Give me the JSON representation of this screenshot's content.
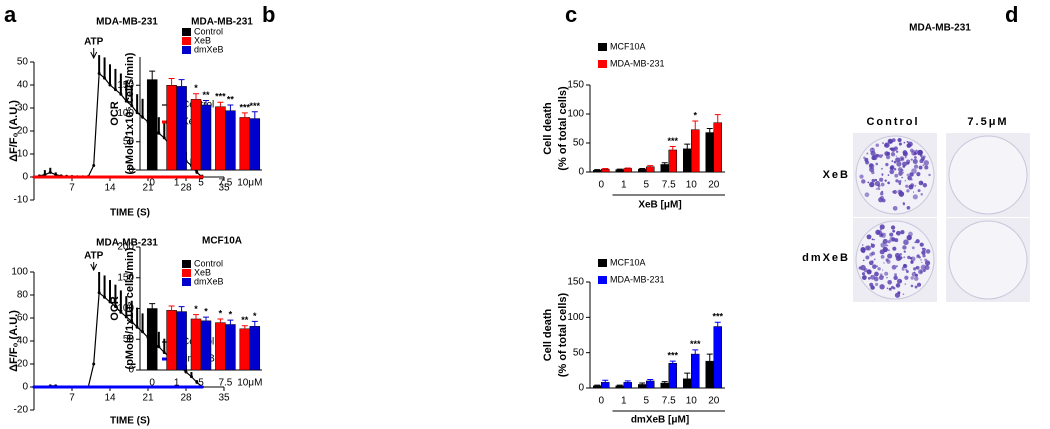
{
  "panel_labels": [
    "a",
    "b",
    "c",
    "d"
  ],
  "chart_data": [
    {
      "type": "line",
      "title": "MDA-MB-231",
      "xlabel": "TIME (S)",
      "ylabel": [
        "ΔF/F₀ (A.U.)"
      ],
      "annotation": {
        "text": "ATP",
        "x": 11
      },
      "x": [
        0,
        1,
        2,
        3,
        4,
        5,
        6,
        7,
        8,
        9,
        10,
        11,
        12,
        13,
        14,
        15,
        16,
        17,
        18,
        19,
        20,
        21,
        22,
        23,
        24,
        25,
        26,
        27,
        28,
        29,
        30,
        31
      ],
      "xlim": [
        0,
        35
      ],
      "xticks": [
        7,
        14,
        21,
        28,
        35
      ],
      "ylim": [
        -10,
        50
      ],
      "yticks": [
        -10,
        0,
        10,
        20,
        30,
        40,
        50
      ],
      "series": [
        {
          "name": "Control",
          "color": "#000000",
          "values": [
            0,
            0.5,
            1,
            2,
            1,
            0.5,
            0.3,
            0.2,
            0.1,
            0.1,
            0.2,
            5,
            45,
            43,
            40,
            38,
            36,
            33,
            31,
            28,
            26,
            24,
            21,
            19,
            17,
            14,
            12,
            9,
            7,
            5,
            2,
            0
          ],
          "errors": [
            0,
            0,
            2,
            2,
            1,
            0,
            0,
            0,
            0,
            0,
            0,
            0,
            8,
            9,
            9,
            9,
            9,
            9,
            9,
            8,
            8,
            8,
            7,
            7,
            7,
            6,
            6,
            5,
            4,
            3,
            2,
            1
          ]
        },
        {
          "name": "XeB",
          "color": "#ff0000",
          "values": [
            0,
            0,
            0,
            0,
            0,
            0,
            0,
            0,
            0,
            0,
            0,
            0,
            0,
            0,
            0,
            0,
            0,
            0,
            0,
            0,
            0,
            0,
            0,
            0,
            0,
            0,
            0,
            0,
            0,
            0,
            0,
            0
          ]
        }
      ]
    },
    {
      "type": "line",
      "title": "MDA-MB-231",
      "xlabel": "TIME (S)",
      "ylabel": [
        "ΔF/F₀ (A.U.)"
      ],
      "annotation": {
        "text": "ATP",
        "x": 11
      },
      "x": [
        0,
        1,
        2,
        3,
        4,
        5,
        6,
        7,
        8,
        9,
        10,
        11,
        12,
        13,
        14,
        15,
        16,
        17,
        18,
        19,
        20,
        21,
        22,
        23,
        24,
        25,
        26,
        27,
        28,
        29,
        30,
        31
      ],
      "xlim": [
        0,
        35
      ],
      "xticks": [
        7,
        14,
        21,
        28,
        35
      ],
      "ylim": [
        -20,
        100
      ],
      "yticks": [
        -20,
        0,
        20,
        40,
        60,
        80,
        100
      ],
      "series": [
        {
          "name": "Control",
          "color": "#000000",
          "values": [
            0,
            0,
            0,
            1,
            1,
            0,
            0,
            0,
            0,
            0,
            0,
            20,
            82,
            78,
            74,
            70,
            65,
            61,
            57,
            52,
            48,
            43,
            39,
            35,
            30,
            26,
            22,
            17,
            13,
            9,
            4,
            0
          ],
          "errors": [
            0,
            0,
            0,
            0,
            0,
            0,
            0,
            0,
            0,
            0,
            0,
            0,
            18,
            19,
            19,
            19,
            19,
            18,
            18,
            17,
            16,
            15,
            14,
            13,
            12,
            11,
            10,
            8,
            6,
            4,
            2,
            1
          ]
        },
        {
          "name": "dmXeB",
          "color": "#0000ff",
          "values": [
            0,
            0,
            0,
            0,
            0,
            0,
            0,
            0,
            0,
            0,
            0,
            0,
            0,
            0,
            0,
            0,
            0,
            0,
            0,
            0,
            0,
            0,
            0,
            0,
            0,
            0,
            0,
            0,
            0,
            0,
            0,
            0
          ]
        }
      ]
    },
    {
      "type": "bar",
      "title": "MDA-MB-231",
      "ylabel": [
        "OCR",
        "(pMole/1x10⁵ cells/min)"
      ],
      "categories": [
        "0",
        "1",
        "5",
        "7.5",
        "10μM"
      ],
      "ylim": [
        0,
        200
      ],
      "yticks": [
        0,
        50,
        100,
        150
      ],
      "series": [
        {
          "name": "Control",
          "color": "#000000",
          "values": [
            160,
            null,
            null,
            null,
            null
          ],
          "errors": [
            15,
            null,
            null,
            null,
            null
          ]
        },
        {
          "name": "XeB",
          "color": "#ff0000",
          "values": [
            null,
            150,
            125,
            112,
            93
          ],
          "errors": [
            null,
            12,
            10,
            8,
            8
          ],
          "annotations": [
            null,
            null,
            "*",
            "***",
            "***"
          ]
        },
        {
          "name": "dmXeB",
          "color": "#0000cc",
          "values": [
            null,
            148,
            115,
            105,
            91
          ],
          "errors": [
            null,
            12,
            8,
            10,
            12
          ],
          "annotations": [
            null,
            null,
            "**",
            "**",
            "***"
          ]
        }
      ]
    },
    {
      "type": "bar",
      "title": "MCF10A",
      "ylabel": [
        "OCR",
        "(pMole/1x10⁵ cells/min)"
      ],
      "categories": [
        "0",
        "1",
        "5",
        "7.5",
        "10μM"
      ],
      "ylim": [
        0,
        200
      ],
      "yticks": [
        0,
        50,
        100,
        150,
        200
      ],
      "series": [
        {
          "name": "Control",
          "color": "#000000",
          "values": [
            100,
            null,
            null,
            null,
            null
          ],
          "errors": [
            8,
            null,
            null,
            null,
            null
          ]
        },
        {
          "name": "XeB",
          "color": "#ff0000",
          "values": [
            null,
            97,
            83,
            77,
            67
          ],
          "errors": [
            null,
            7,
            7,
            6,
            5
          ],
          "annotations": [
            null,
            null,
            "*",
            "*",
            "**"
          ]
        },
        {
          "name": "dmXeB",
          "color": "#0000cc",
          "values": [
            null,
            95,
            80,
            74,
            71
          ],
          "errors": [
            null,
            8,
            6,
            7,
            8
          ],
          "annotations": [
            null,
            null,
            "*",
            "*",
            "*"
          ]
        }
      ]
    },
    {
      "type": "bar",
      "xlabel": "XeB [μM]",
      "ylabel": [
        "Cell death",
        "(% of total cells)"
      ],
      "categories": [
        "0",
        "1",
        "5",
        "7.5",
        "10",
        "20"
      ],
      "ylim": [
        0,
        150
      ],
      "yticks": [
        0,
        50,
        100,
        150
      ],
      "series": [
        {
          "name": "MCF10A",
          "color": "#000000",
          "values": [
            3,
            4,
            5,
            13,
            40,
            68
          ],
          "errors": [
            1,
            1,
            1,
            3,
            8,
            7
          ]
        },
        {
          "name": "MDA-MB-231",
          "color": "#ff0000",
          "values": [
            5,
            6,
            9,
            38,
            73,
            85
          ],
          "errors": [
            1,
            1,
            2,
            6,
            15,
            14
          ],
          "annotations": [
            null,
            null,
            null,
            "***",
            "*",
            null
          ]
        }
      ]
    },
    {
      "type": "bar",
      "xlabel": "dmXeB [μM]",
      "ylabel": [
        "Cell death",
        "(% of total cells)"
      ],
      "categories": [
        "0",
        "1",
        "5",
        "7.5",
        "10",
        "20"
      ],
      "ylim": [
        0,
        150
      ],
      "yticks": [
        0,
        50,
        100,
        150
      ],
      "series": [
        {
          "name": "MCF10A",
          "color": "#000000",
          "values": [
            3,
            3,
            5,
            7,
            13,
            38
          ],
          "errors": [
            1,
            1,
            2,
            2,
            8,
            10
          ]
        },
        {
          "name": "MDA-MB-231",
          "color": "#0000ff",
          "values": [
            8,
            8,
            10,
            35,
            48,
            87
          ],
          "errors": [
            3,
            2,
            2,
            3,
            6,
            6
          ],
          "annotations": [
            null,
            null,
            null,
            "***",
            "***",
            "***"
          ]
        }
      ]
    }
  ],
  "image_panel": {
    "title": "MDA-MB-231",
    "columns": [
      "Control",
      "7.5μM"
    ],
    "rows": [
      "XeB",
      "dmXeB"
    ]
  }
}
